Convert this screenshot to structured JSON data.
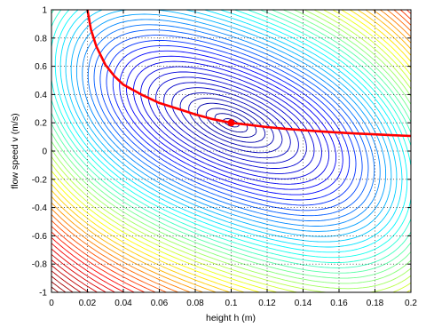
{
  "chart_data": {
    "type": "contour",
    "title": "",
    "xlabel": "height h (m)",
    "ylabel": "flow speed v (m/s)",
    "xlim": [
      0,
      0.2
    ],
    "ylim": [
      -1,
      1
    ],
    "xticks": [
      "0",
      "0.02",
      "0.04",
      "0.06",
      "0.08",
      "0.1",
      "0.12",
      "0.14",
      "0.16",
      "0.18",
      "0.2"
    ],
    "yticks": [
      "1",
      "0.8",
      "0.6",
      "0.4",
      "0.2",
      "0",
      "-0.2",
      "-0.4",
      "-0.6",
      "-0.8",
      "-1"
    ],
    "grid": true,
    "colormap": [
      "#00008f",
      "#0000ff",
      "#00ffff",
      "#ffff00",
      "#ff0000",
      "#800000"
    ],
    "contour_center": {
      "h": 0.1,
      "v": 0.2
    },
    "num_levels": 55,
    "curve": {
      "color": "#ff0000",
      "h": [
        0.02,
        0.022,
        0.025,
        0.03,
        0.035,
        0.04,
        0.05,
        0.06,
        0.07,
        0.08,
        0.09,
        0.1,
        0.11,
        0.12,
        0.13,
        0.14,
        0.15,
        0.16,
        0.17,
        0.18,
        0.19,
        0.2
      ],
      "v": [
        1.0,
        0.86,
        0.74,
        0.61,
        0.53,
        0.47,
        0.4,
        0.34,
        0.3,
        0.26,
        0.225,
        0.2,
        0.185,
        0.17,
        0.158,
        0.148,
        0.139,
        0.131,
        0.124,
        0.118,
        0.112,
        0.107
      ]
    },
    "marker": {
      "h": 0.1,
      "v": 0.2,
      "color": "#ff0000"
    }
  }
}
